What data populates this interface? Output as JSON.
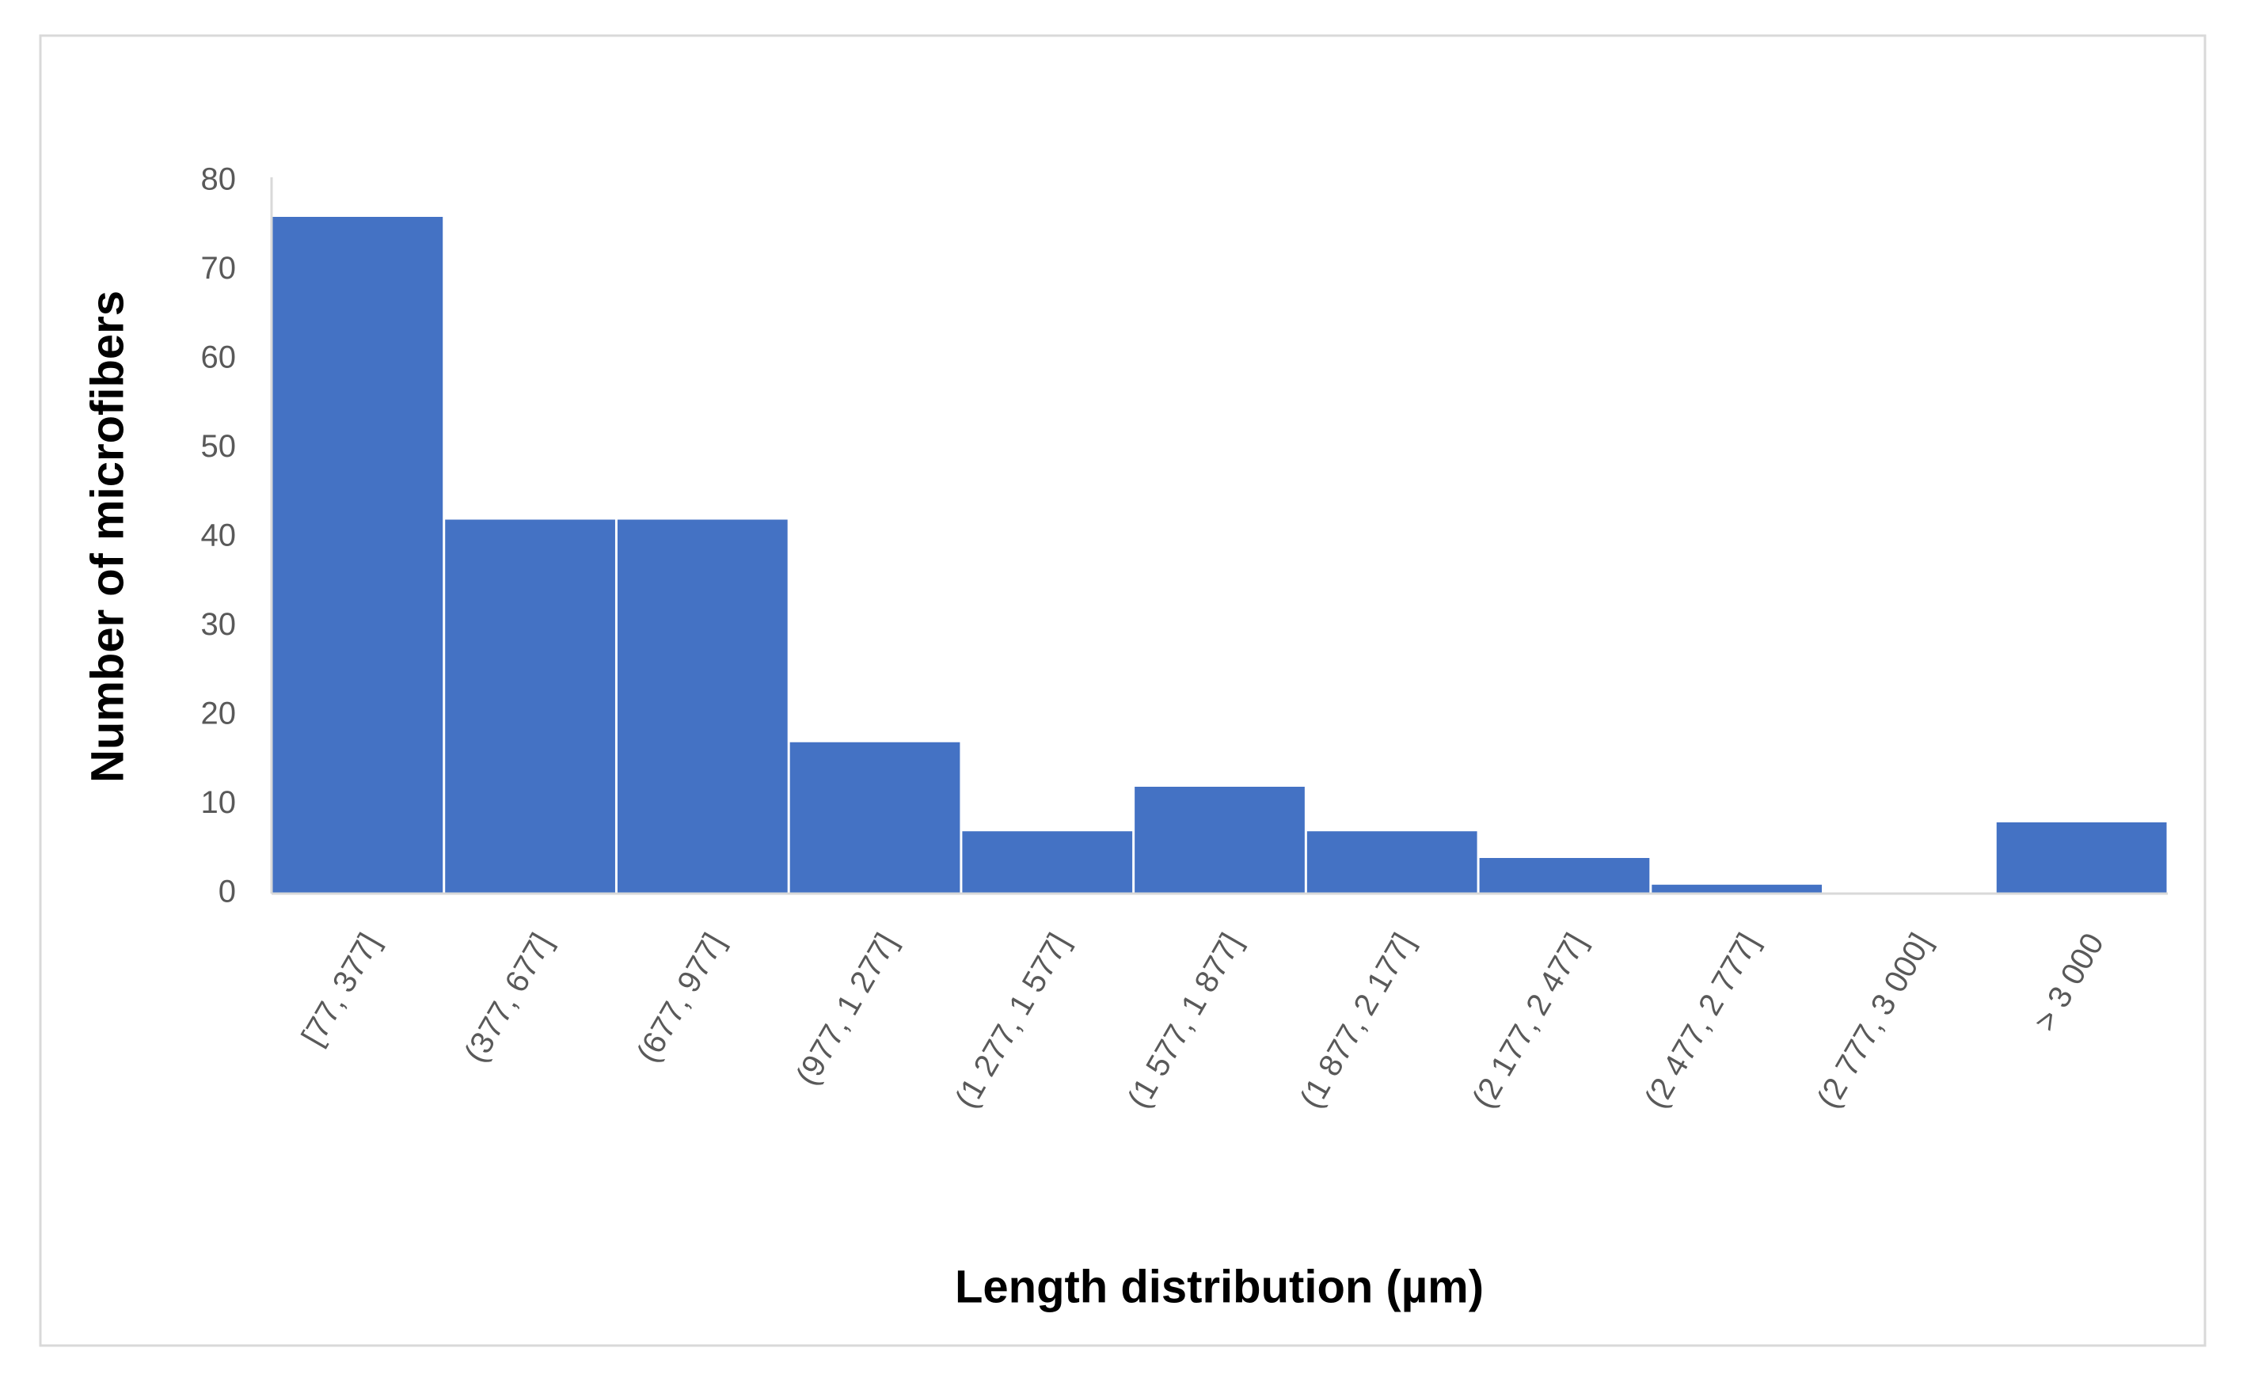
{
  "chart_data": {
    "type": "bar",
    "x_label": "Length distribution (µm)",
    "y_label": "Number of microfibers",
    "categories": [
      "[77, 377]",
      "(377, 677]",
      "(677, 977]",
      "(977, 1 277]",
      "(1 277, 1 577]",
      "(1 577, 1 877]",
      "(1 877, 2 177]",
      "(2 177, 2 477]",
      "(2 477, 2 777]",
      "(2 777, 3 000]",
      "> 3 000"
    ],
    "values": [
      76,
      42,
      42,
      17,
      7,
      12,
      7,
      4,
      1,
      0,
      8
    ],
    "color": "#4472c4",
    "ylim": [
      0,
      80
    ],
    "yticks": [
      0,
      10,
      20,
      30,
      40,
      50,
      60,
      70,
      80
    ],
    "grid": false
  }
}
